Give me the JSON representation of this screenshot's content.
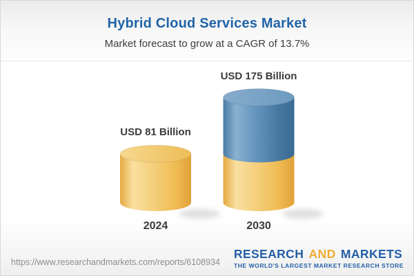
{
  "header": {
    "title": "Hybrid Cloud Services Market",
    "subtitle": "Market forecast to grow at a CAGR of 13.7%"
  },
  "chart_data": {
    "type": "bar",
    "style": "3d-cylinder",
    "categories": [
      "2024",
      "2030"
    ],
    "values": [
      81,
      175
    ],
    "value_labels": [
      "USD 81 Billion",
      "USD 175 Billion"
    ],
    "unit": "USD Billion",
    "title": "Hybrid Cloud Services Market",
    "subtitle": "Market forecast to grow at a CAGR of 13.7%",
    "cagr": "13.7%",
    "ylim": [
      0,
      175
    ],
    "legend": false,
    "stacking": "2030 cylinder shows 2024 base segment in gold plus forecast growth segment in blue",
    "colors": {
      "base_segment": "#F2C66B",
      "growth_segment": "#5E8FB9",
      "title_blue": "#2164a7",
      "label_dark": "#3b3b3b"
    }
  },
  "footer": {
    "url": "https://www.researchandmarkets.com/reports/6108934",
    "logo": {
      "word1": "RESEARCH",
      "word2": "AND",
      "word3": "MARKETS",
      "tagline": "THE WORLD'S LARGEST MARKET RESEARCH STORE"
    }
  }
}
